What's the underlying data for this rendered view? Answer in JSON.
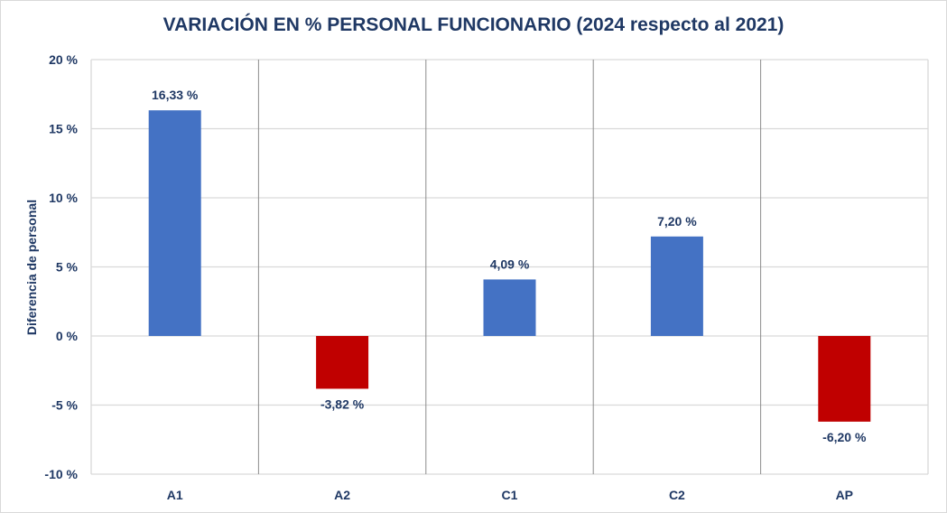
{
  "chart_data": {
    "type": "bar",
    "title": "VARIACIÓN EN % PERSONAL FUNCIONARIO (2024 respecto al 2021)",
    "xlabel": "",
    "ylabel": "Diferencia de personal",
    "categories": [
      "A1",
      "A2",
      "C1",
      "C2",
      "AP"
    ],
    "values": [
      16.33,
      -3.82,
      4.09,
      7.2,
      -6.2
    ],
    "data_labels": [
      "16,33 %",
      "-3,82 %",
      "4,09 %",
      "7,20 %",
      "-6,20 %"
    ],
    "ylim": [
      -10,
      20
    ],
    "yticks": [
      20,
      15,
      10,
      5,
      0,
      -5,
      -10
    ],
    "ytick_labels": [
      "20 %",
      "15 %",
      "10 %",
      "5 %",
      "0 %",
      "-5 %",
      "-10 %"
    ],
    "grid": true,
    "legend": "none",
    "colors": {
      "positive": "#4472c4",
      "negative": "#c00000",
      "text": "#1f3864"
    }
  }
}
